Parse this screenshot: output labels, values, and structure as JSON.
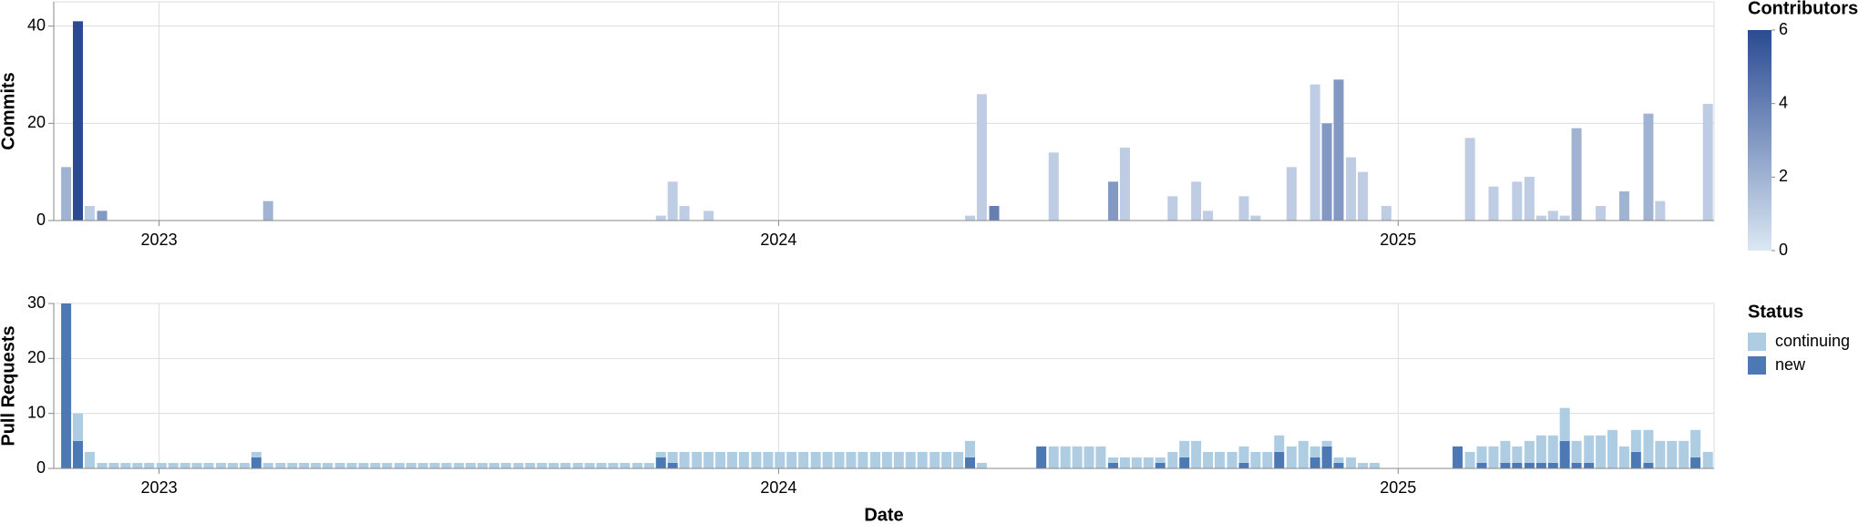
{
  "chart_data": [
    {
      "type": "bar",
      "y_label": "Commits",
      "x": [
        2022.85,
        2022.869,
        2022.888,
        2022.908,
        2023.176,
        2023.81,
        2023.829,
        2023.848,
        2023.887,
        2024.309,
        2024.328,
        2024.348,
        2024.444,
        2024.54,
        2024.559,
        2024.636,
        2024.674,
        2024.693,
        2024.751,
        2024.77,
        2024.828,
        2024.866,
        2024.885,
        2024.904,
        2024.924,
        2024.943,
        2024.981,
        2025.116,
        2025.154,
        2025.192,
        2025.212,
        2025.231,
        2025.25,
        2025.269,
        2025.288,
        2025.327,
        2025.365,
        2025.404,
        2025.423,
        2025.5
      ],
      "values": [
        11,
        41,
        3,
        2,
        4,
        1,
        8,
        3,
        2,
        1,
        26,
        3,
        14,
        8,
        15,
        5,
        8,
        2,
        5,
        1,
        11,
        28,
        20,
        29,
        13,
        10,
        3,
        17,
        7,
        8,
        9,
        1,
        2,
        1,
        19,
        3,
        6,
        22,
        4,
        24
      ],
      "contributors": [
        2,
        6,
        1,
        3,
        2,
        1,
        1,
        1,
        1,
        1,
        1,
        4,
        1,
        3,
        1,
        1,
        1,
        1,
        1,
        1,
        1,
        1,
        3,
        3,
        1,
        1,
        1,
        1,
        1,
        1,
        1,
        1,
        1,
        1,
        2,
        1,
        2,
        2,
        1,
        1
      ],
      "color_scale": {
        "title": "Contributors",
        "domain": [
          0,
          6
        ],
        "range": [
          "#dbe7f3",
          "#2a4b92"
        ],
        "ticks": [
          0,
          2,
          4,
          6
        ]
      },
      "xlim": [
        2022.83,
        2025.51
      ],
      "xticks": [
        2023,
        2024,
        2025
      ],
      "ylim": [
        0,
        45
      ],
      "yticks": [
        0,
        20,
        40
      ],
      "grid": true
    },
    {
      "type": "stacked_bar",
      "y_label": "Pull Requests",
      "x_label": "Date",
      "legend_title": "Status",
      "x": [
        2022.85,
        2022.869,
        2022.888,
        2022.908,
        2022.927,
        2022.946,
        2022.965,
        2022.984,
        2023.004,
        2023.023,
        2023.042,
        2023.061,
        2023.08,
        2023.1,
        2023.119,
        2023.138,
        2023.157,
        2023.176,
        2023.196,
        2023.215,
        2023.234,
        2023.253,
        2023.272,
        2023.292,
        2023.311,
        2023.33,
        2023.349,
        2023.368,
        2023.388,
        2023.407,
        2023.426,
        2023.445,
        2023.464,
        2023.484,
        2023.503,
        2023.522,
        2023.541,
        2023.56,
        2023.58,
        2023.599,
        2023.618,
        2023.637,
        2023.656,
        2023.676,
        2023.695,
        2023.714,
        2023.733,
        2023.752,
        2023.772,
        2023.791,
        2023.81,
        2023.829,
        2023.848,
        2023.868,
        2023.887,
        2023.906,
        2023.925,
        2023.944,
        2023.964,
        2023.983,
        2024.002,
        2024.021,
        2024.04,
        2024.06,
        2024.079,
        2024.098,
        2024.117,
        2024.136,
        2024.156,
        2024.175,
        2024.194,
        2024.213,
        2024.232,
        2024.252,
        2024.271,
        2024.29,
        2024.309,
        2024.328,
        2024.348,
        2024.367,
        2024.386,
        2024.405,
        2024.424,
        2024.444,
        2024.463,
        2024.482,
        2024.501,
        2024.52,
        2024.54,
        2024.559,
        2024.578,
        2024.597,
        2024.616,
        2024.636,
        2024.655,
        2024.674,
        2024.693,
        2024.712,
        2024.732,
        2024.751,
        2024.77,
        2024.789,
        2024.808,
        2024.828,
        2024.847,
        2024.866,
        2024.885,
        2024.904,
        2024.924,
        2024.943,
        2024.962,
        2024.981,
        2025.0,
        2025.02,
        2025.039,
        2025.058,
        2025.077,
        2025.096,
        2025.116,
        2025.135,
        2025.154,
        2025.173,
        2025.192,
        2025.212,
        2025.231,
        2025.25,
        2025.269,
        2025.288,
        2025.308,
        2025.327,
        2025.346,
        2025.365,
        2025.384,
        2025.404,
        2025.423,
        2025.442,
        2025.461,
        2025.48,
        2025.5
      ],
      "series": [
        {
          "name": "continuing",
          "color": "#aecde3",
          "values": [
            0,
            5,
            3,
            1,
            1,
            1,
            1,
            1,
            1,
            1,
            1,
            1,
            1,
            1,
            1,
            1,
            1,
            1,
            1,
            1,
            1,
            1,
            1,
            1,
            1,
            1,
            1,
            1,
            1,
            1,
            1,
            1,
            1,
            1,
            1,
            1,
            1,
            1,
            1,
            1,
            1,
            1,
            1,
            1,
            1,
            1,
            1,
            1,
            1,
            1,
            1,
            2,
            3,
            3,
            3,
            3,
            3,
            3,
            3,
            3,
            3,
            3,
            3,
            3,
            3,
            3,
            3,
            3,
            3,
            3,
            3,
            3,
            3,
            3,
            3,
            3,
            3,
            1,
            0,
            0,
            0,
            0,
            0,
            4,
            4,
            4,
            4,
            4,
            1,
            2,
            2,
            2,
            1,
            3,
            3,
            5,
            3,
            3,
            3,
            3,
            3,
            3,
            3,
            4,
            5,
            2,
            1,
            1,
            2,
            1,
            1,
            0,
            0,
            0,
            0,
            0,
            0,
            0,
            3,
            3,
            4,
            4,
            3,
            4,
            5,
            5,
            6,
            4,
            5,
            6,
            7,
            4,
            4,
            6,
            5,
            5,
            5,
            5,
            3
          ]
        },
        {
          "name": "new",
          "color": "#4c78b4",
          "values": [
            30,
            5,
            0,
            0,
            0,
            0,
            0,
            0,
            0,
            0,
            0,
            0,
            0,
            0,
            0,
            0,
            2,
            0,
            0,
            0,
            0,
            0,
            0,
            0,
            0,
            0,
            0,
            0,
            0,
            0,
            0,
            0,
            0,
            0,
            0,
            0,
            0,
            0,
            0,
            0,
            0,
            0,
            0,
            0,
            0,
            0,
            0,
            0,
            0,
            0,
            2,
            1,
            0,
            0,
            0,
            0,
            0,
            0,
            0,
            0,
            0,
            0,
            0,
            0,
            0,
            0,
            0,
            0,
            0,
            0,
            0,
            0,
            0,
            0,
            0,
            0,
            2,
            0,
            0,
            0,
            0,
            0,
            4,
            0,
            0,
            0,
            0,
            0,
            1,
            0,
            0,
            0,
            1,
            0,
            2,
            0,
            0,
            0,
            0,
            1,
            0,
            0,
            3,
            0,
            0,
            2,
            4,
            1,
            0,
            0,
            0,
            0,
            0,
            0,
            0,
            0,
            0,
            4,
            0,
            1,
            0,
            1,
            1,
            1,
            1,
            1,
            5,
            1,
            1,
            0,
            0,
            0,
            3,
            1,
            0,
            0,
            0,
            2,
            0
          ]
        }
      ],
      "xlim": [
        2022.83,
        2025.51
      ],
      "xticks": [
        2023,
        2024,
        2025
      ],
      "ylim": [
        0,
        30
      ],
      "yticks": [
        0,
        10,
        20,
        30
      ],
      "grid": true
    }
  ]
}
